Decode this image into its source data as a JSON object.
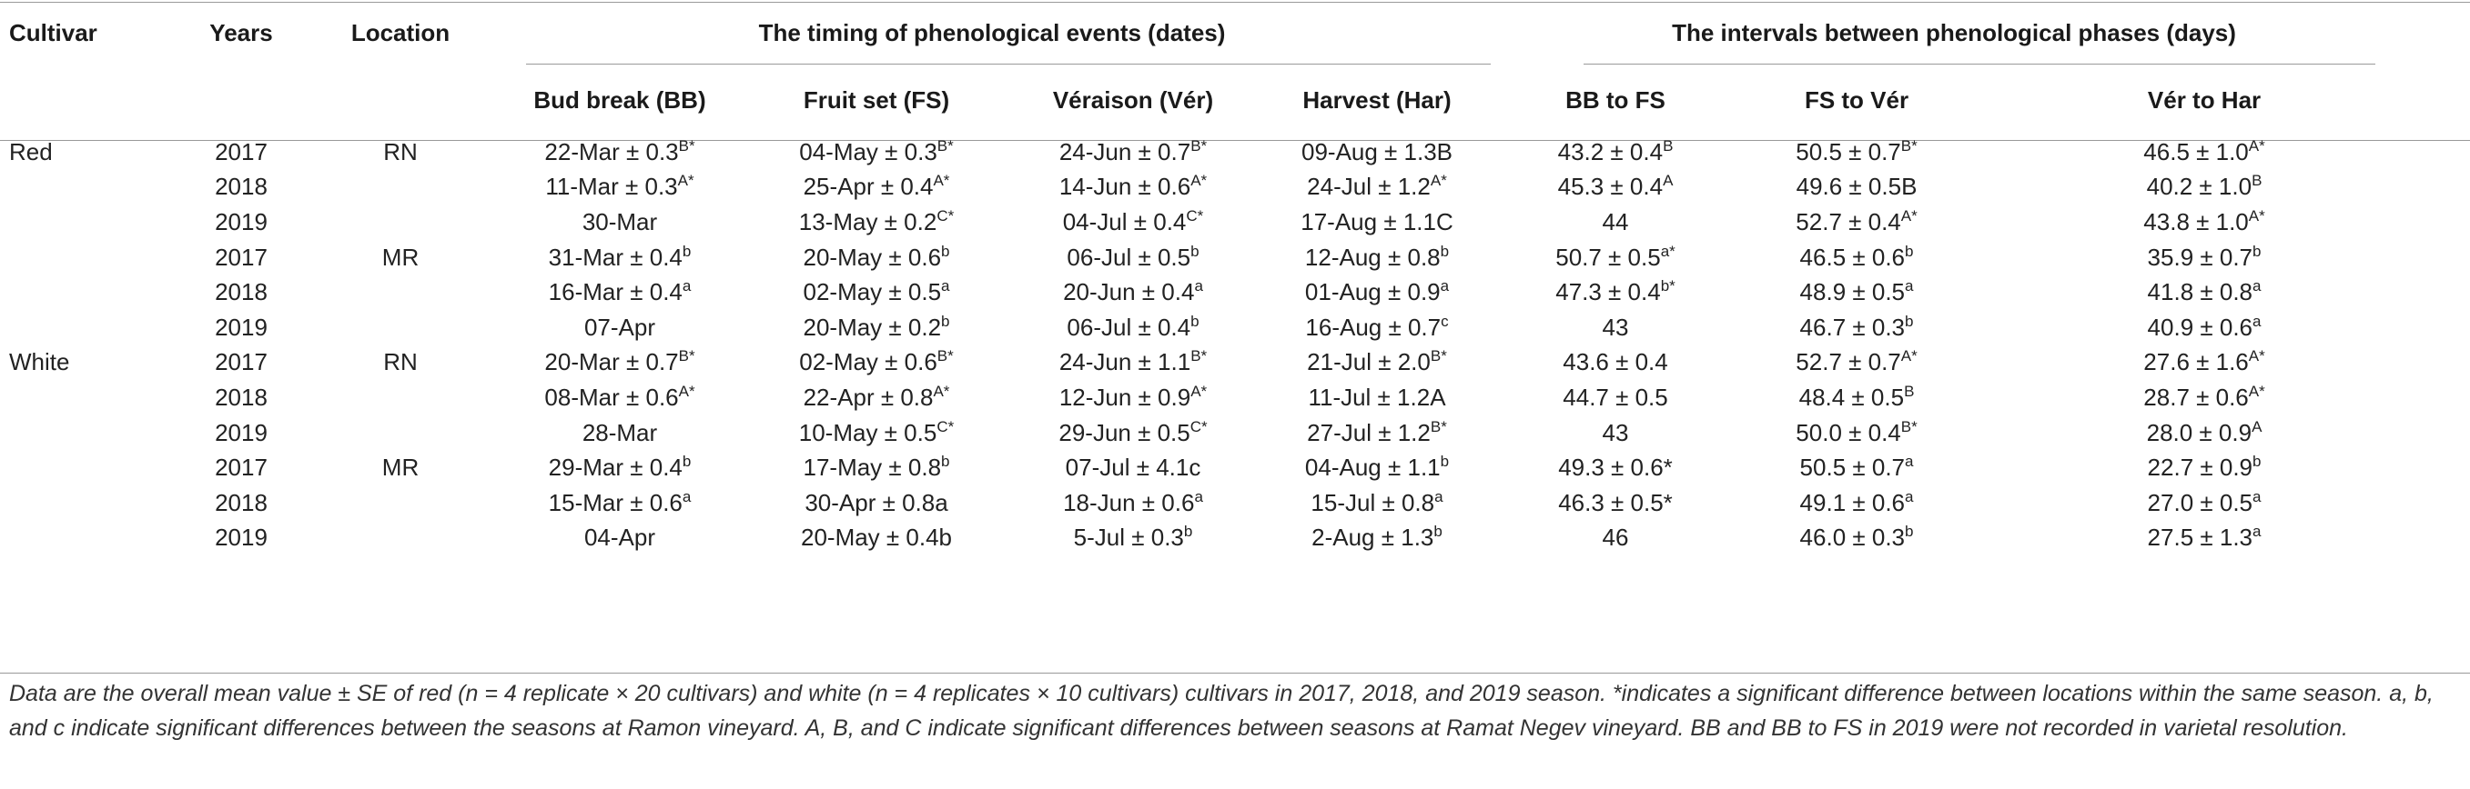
{
  "header": {
    "cultivar": "Cultivar",
    "years": "Years",
    "location": "Location",
    "group_timing": "The timing of phenological events (dates)",
    "group_intervals": "The intervals between phenological phases (days)",
    "bb": "Bud break (BB)",
    "fs": "Fruit set (FS)",
    "ver": "Véraison (Vér)",
    "har": "Harvest (Har)",
    "bb_fs": "BB to FS",
    "fs_ver": "FS to Vér",
    "ver_har": "Vér to Har"
  },
  "rows": [
    {
      "cultivar": "Red",
      "year": "2017",
      "loc": "RN",
      "cells": [
        [
          "22-Mar ± 0.3",
          "B*"
        ],
        [
          "04-May ± 0.3",
          "B*"
        ],
        [
          "24-Jun ± 0.7",
          "B*"
        ],
        [
          "09-Aug ± 1.3B",
          ""
        ],
        [
          "43.2 ± 0.4",
          "B"
        ],
        [
          "50.5 ± 0.7",
          "B*"
        ],
        [
          "46.5 ± 1.0",
          "A*"
        ]
      ]
    },
    {
      "cultivar": "",
      "year": "2018",
      "loc": "",
      "cells": [
        [
          "11-Mar ± 0.3",
          "A*"
        ],
        [
          "25-Apr ± 0.4",
          "A*"
        ],
        [
          "14-Jun ± 0.6",
          "A*"
        ],
        [
          "24-Jul ± 1.2",
          "A*"
        ],
        [
          "45.3 ± 0.4",
          "A"
        ],
        [
          "49.6 ± 0.5B",
          ""
        ],
        [
          "40.2 ± 1.0",
          "B"
        ]
      ]
    },
    {
      "cultivar": "",
      "year": "2019",
      "loc": "",
      "cells": [
        [
          "30-Mar",
          ""
        ],
        [
          "13-May ± 0.2",
          "C*"
        ],
        [
          "04-Jul ± 0.4",
          "C*"
        ],
        [
          "17-Aug ± 1.1C",
          ""
        ],
        [
          "44",
          ""
        ],
        [
          "52.7 ± 0.4",
          "A*"
        ],
        [
          "43.8 ± 1.0",
          "A*"
        ]
      ]
    },
    {
      "cultivar": "",
      "year": "2017",
      "loc": "MR",
      "cells": [
        [
          "31-Mar ± 0.4",
          "b"
        ],
        [
          "20-May ± 0.6",
          "b"
        ],
        [
          "06-Jul ± 0.5",
          "b"
        ],
        [
          "12-Aug ± 0.8",
          "b"
        ],
        [
          "50.7 ± 0.5",
          "a*"
        ],
        [
          "46.5 ± 0.6",
          "b"
        ],
        [
          "35.9 ± 0.7",
          "b"
        ]
      ]
    },
    {
      "cultivar": "",
      "year": "2018",
      "loc": "",
      "cells": [
        [
          "16-Mar ± 0.4",
          "a"
        ],
        [
          "02-May ± 0.5",
          "a"
        ],
        [
          "20-Jun ± 0.4",
          "a"
        ],
        [
          "01-Aug ± 0.9",
          "a"
        ],
        [
          "47.3 ± 0.4",
          "b*"
        ],
        [
          "48.9 ± 0.5",
          "a"
        ],
        [
          "41.8 ± 0.8",
          "a"
        ]
      ]
    },
    {
      "cultivar": "",
      "year": "2019",
      "loc": "",
      "cells": [
        [
          "07-Apr",
          ""
        ],
        [
          "20-May ± 0.2",
          "b"
        ],
        [
          "06-Jul ± 0.4",
          "b"
        ],
        [
          "16-Aug ± 0.7",
          "c"
        ],
        [
          "43",
          ""
        ],
        [
          "46.7 ± 0.3",
          "b"
        ],
        [
          "40.9 ± 0.6",
          "a"
        ]
      ]
    },
    {
      "cultivar": "White",
      "year": "2017",
      "loc": "RN",
      "cells": [
        [
          "20-Mar ± 0.7",
          "B*"
        ],
        [
          "02-May ± 0.6",
          "B*"
        ],
        [
          "24-Jun ± 1.1",
          "B*"
        ],
        [
          "21-Jul ± 2.0",
          "B*"
        ],
        [
          "43.6 ± 0.4",
          ""
        ],
        [
          "52.7 ± 0.7",
          "A*"
        ],
        [
          "27.6 ± 1.6",
          "A*"
        ]
      ]
    },
    {
      "cultivar": "",
      "year": "2018",
      "loc": "",
      "cells": [
        [
          "08-Mar ± 0.6",
          "A*"
        ],
        [
          "22-Apr ± 0.8",
          "A*"
        ],
        [
          "12-Jun ± 0.9",
          "A*"
        ],
        [
          "11-Jul ± 1.2A",
          ""
        ],
        [
          "44.7 ± 0.5",
          ""
        ],
        [
          "48.4 ± 0.5",
          "B"
        ],
        [
          "28.7 ± 0.6",
          "A*"
        ]
      ]
    },
    {
      "cultivar": "",
      "year": "2019",
      "loc": "",
      "cells": [
        [
          "28-Mar",
          ""
        ],
        [
          "10-May ± 0.5",
          "C*"
        ],
        [
          "29-Jun ± 0.5",
          "C*"
        ],
        [
          "27-Jul ± 1.2",
          "B*"
        ],
        [
          "43",
          ""
        ],
        [
          "50.0 ± 0.4",
          "B*"
        ],
        [
          "28.0 ± 0.9",
          "A"
        ]
      ]
    },
    {
      "cultivar": "",
      "year": "2017",
      "loc": "MR",
      "cells": [
        [
          "29-Mar ± 0.4",
          "b"
        ],
        [
          "17-May ± 0.8",
          "b"
        ],
        [
          "07-Jul ± 4.1c",
          ""
        ],
        [
          "04-Aug ± 1.1",
          "b"
        ],
        [
          "49.3 ± 0.6*",
          ""
        ],
        [
          "50.5 ± 0.7",
          "a"
        ],
        [
          "22.7 ± 0.9",
          "b"
        ]
      ]
    },
    {
      "cultivar": "",
      "year": "2018",
      "loc": "",
      "cells": [
        [
          "15-Mar ± 0.6",
          "a"
        ],
        [
          "30-Apr ± 0.8a",
          ""
        ],
        [
          "18-Jun ± 0.6",
          "a"
        ],
        [
          "15-Jul ± 0.8",
          "a"
        ],
        [
          "46.3 ± 0.5*",
          ""
        ],
        [
          "49.1 ± 0.6",
          "a"
        ],
        [
          "27.0 ± 0.5",
          "a"
        ]
      ]
    },
    {
      "cultivar": "",
      "year": "2019",
      "loc": "",
      "cells": [
        [
          "04-Apr",
          ""
        ],
        [
          "20-May ± 0.4b",
          ""
        ],
        [
          "5-Jul ± 0.3",
          "b"
        ],
        [
          "2-Aug ± 1.3",
          "b"
        ],
        [
          "46",
          ""
        ],
        [
          "46.0 ± 0.3",
          "b"
        ],
        [
          "27.5 ± 1.3",
          "a"
        ]
      ]
    }
  ],
  "footnote": "Data are the overall mean value ± SE of red (n = 4 replicate × 20 cultivars) and white (n = 4 replicates × 10 cultivars) cultivars in 2017, 2018, and 2019 season. *indicates a significant difference between locations within the same season. a, b, and c indicate significant differences between the seasons at Ramon vineyard. A, B, and C indicate significant differences between seasons at Ramat Negev vineyard. BB and BB to FS in 2019 were not recorded in varietal resolution."
}
